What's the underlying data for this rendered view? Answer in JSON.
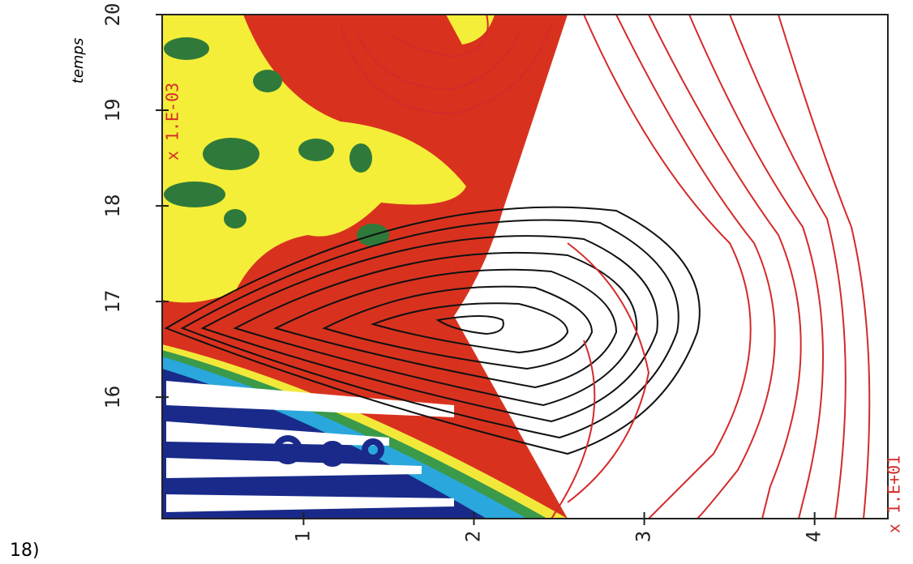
{
  "chart_data": {
    "type": "contour",
    "y_label": "temps",
    "y_multiplier": "x 1.E-03",
    "x_multiplier": "x 1.E+01",
    "figure_label": "18)",
    "xlim": [
      0.17,
      4.43
    ],
    "xticks": [
      1,
      2,
      3,
      4
    ],
    "ylim": [
      14.73,
      20
    ],
    "yticks": [
      16,
      17,
      18,
      19,
      20
    ],
    "axis_color": "#222222",
    "multiplier_color": "#d42a2a"
  }
}
